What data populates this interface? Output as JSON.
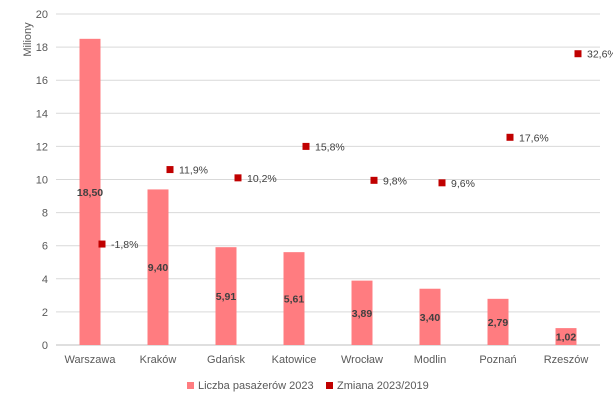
{
  "chart_data": {
    "type": "bar",
    "categories": [
      "Warszawa",
      "Kraków",
      "Gdańsk",
      "Katowice",
      "Wrocław",
      "Modlin",
      "Poznań",
      "Rzeszów"
    ],
    "ylabel": "Miliony",
    "ylim": [
      0,
      20
    ],
    "yticks": [
      0,
      2,
      4,
      6,
      8,
      10,
      12,
      14,
      16,
      18,
      20
    ],
    "grid": true,
    "legend_position": "bottom",
    "series": [
      {
        "name": "Liczba pasażerów 2023",
        "type": "bar",
        "color": "#ff7c80",
        "values": [
          18.5,
          9.4,
          5.91,
          5.61,
          3.89,
          3.4,
          2.79,
          1.02
        ],
        "labels": [
          "18,50",
          "9,40",
          "5,91",
          "5,61",
          "3,89",
          "3,40",
          "2,79",
          "1,02"
        ]
      },
      {
        "name": "Zmiana 2023/2019",
        "type": "scatter",
        "color": "#c00000",
        "values": [
          6.1,
          10.6,
          10.1,
          12.0,
          9.95,
          9.8,
          12.55,
          17.6
        ],
        "labels": [
          "-1,8%",
          "11,9%",
          "10,2%",
          "15,8%",
          "9,8%",
          "9,6%",
          "17,6%",
          "32,6%"
        ]
      }
    ]
  }
}
